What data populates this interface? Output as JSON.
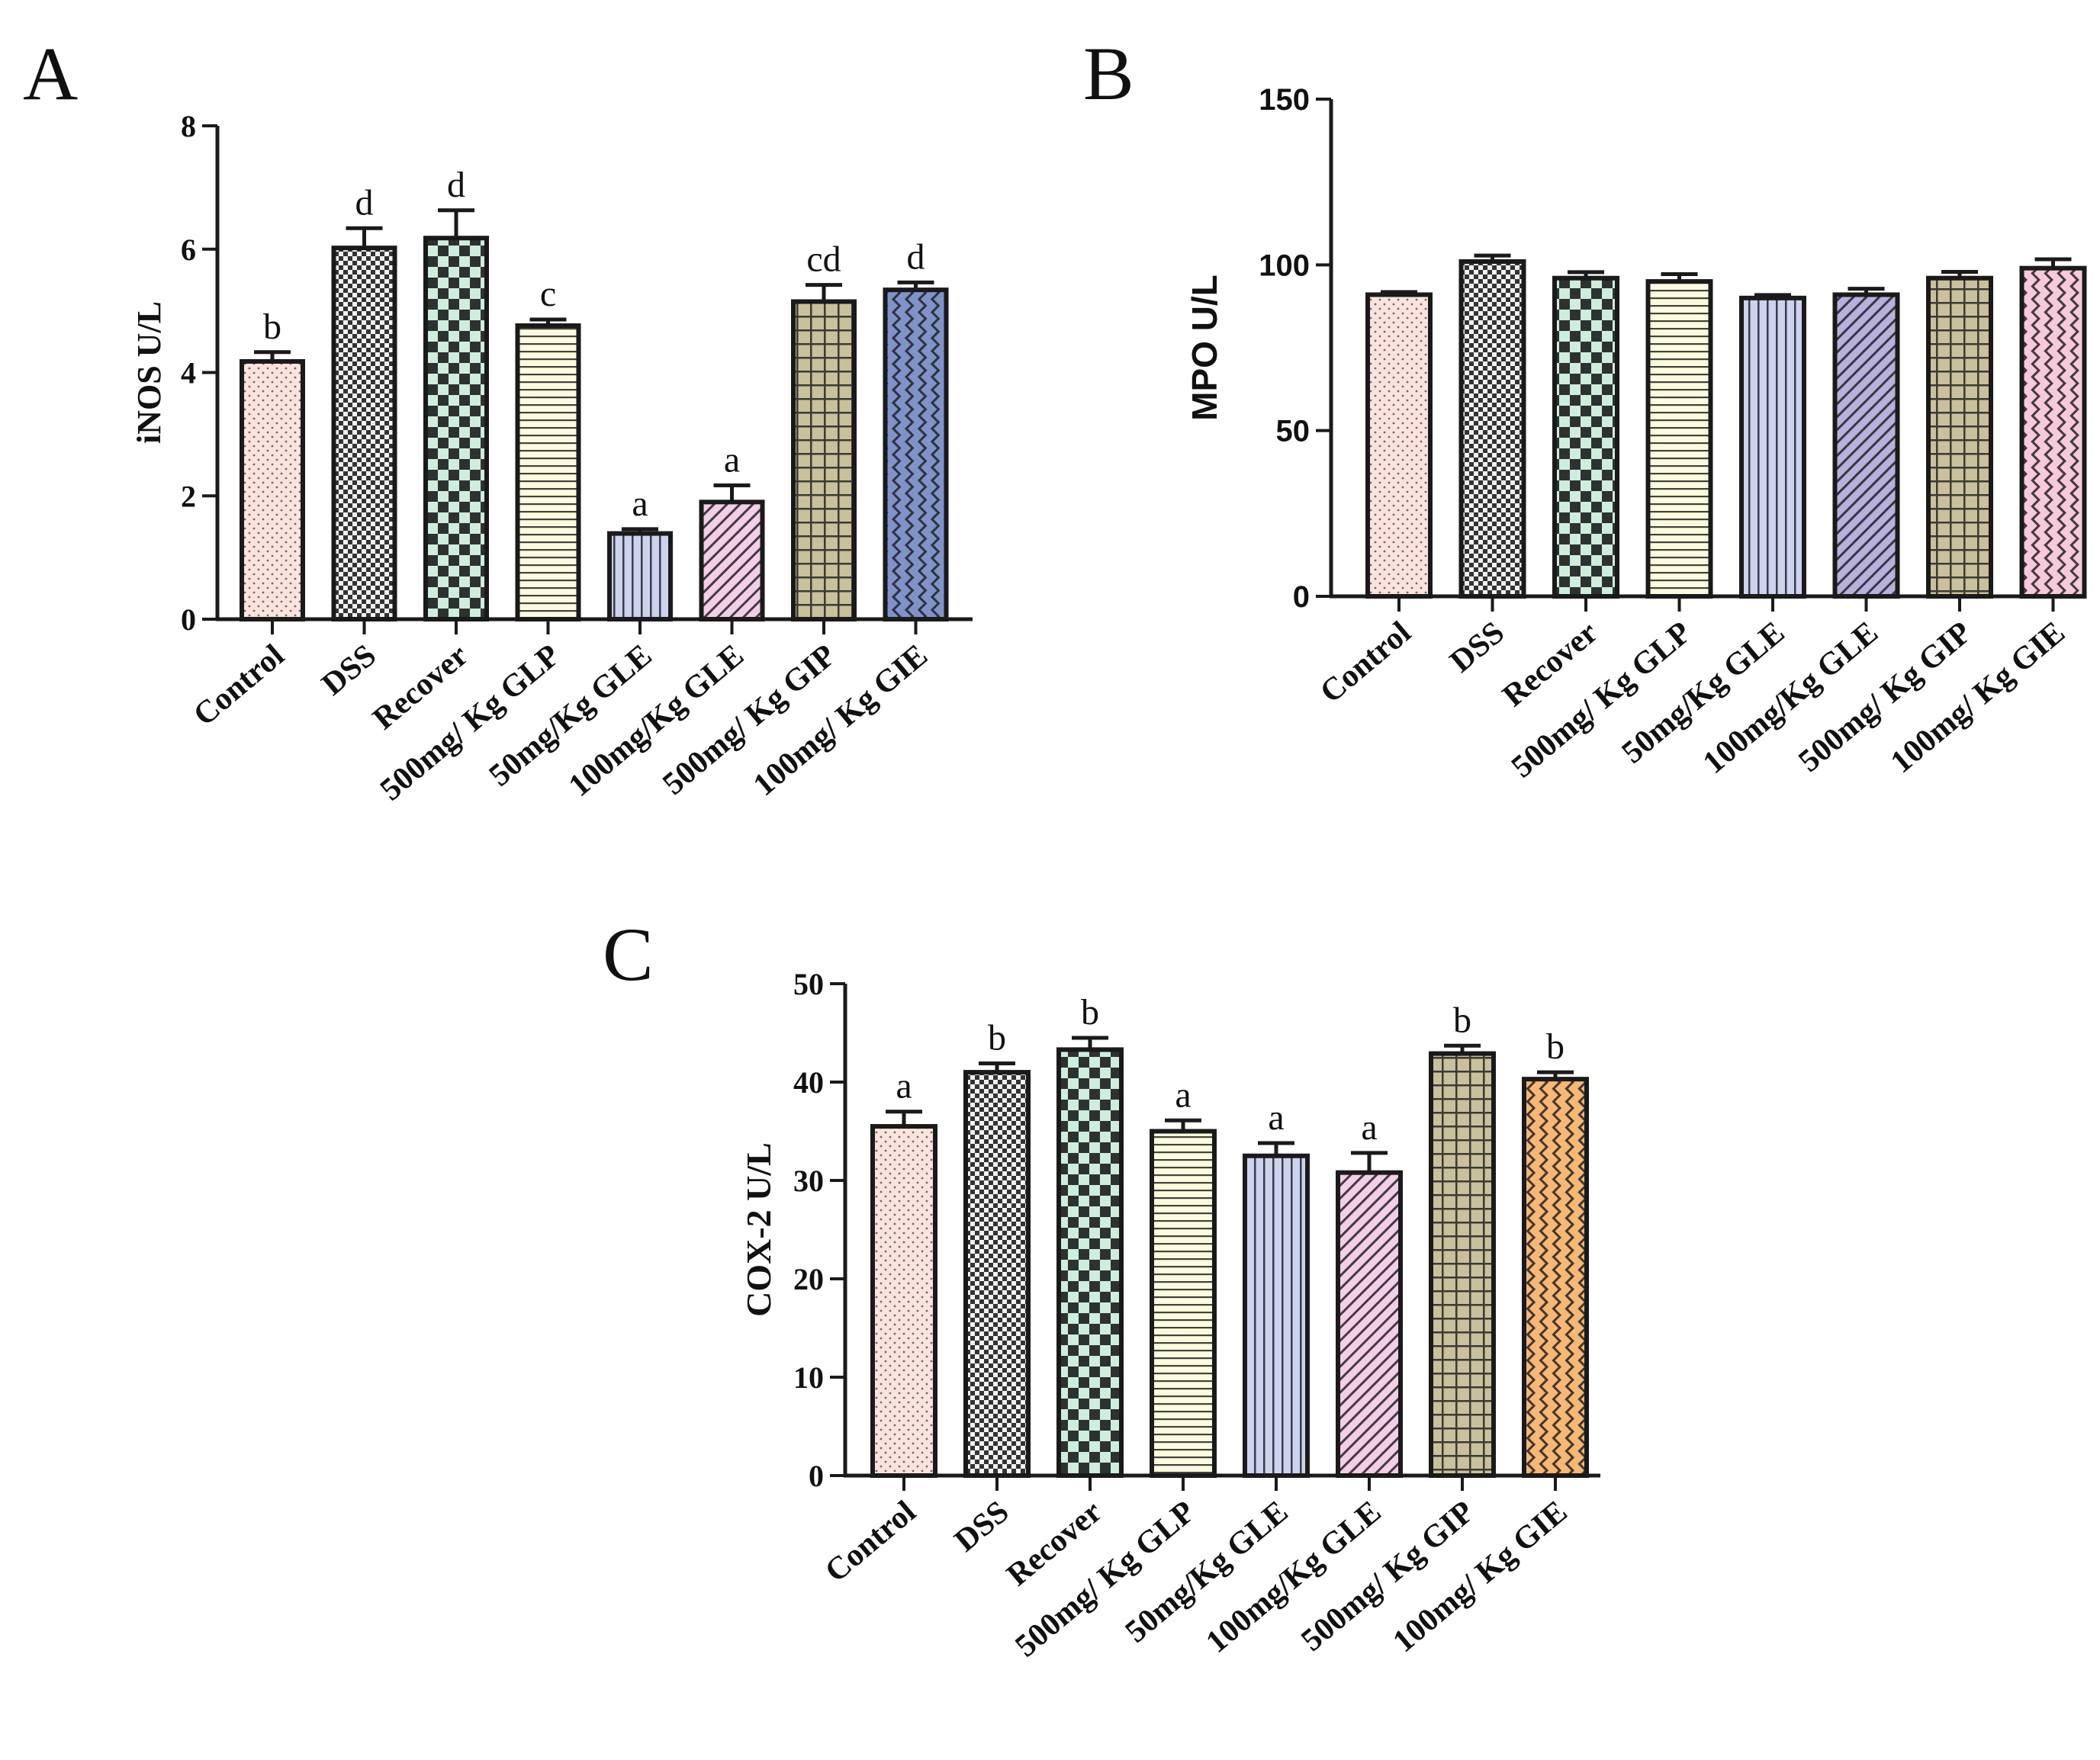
{
  "chart_data": [
    {
      "panel": "A",
      "type": "bar",
      "ylabel": "iNOS U/L",
      "ylim": [
        0,
        8
      ],
      "yticks": [
        0,
        2,
        4,
        6,
        8
      ],
      "categories": [
        "Control",
        "DSS",
        "Recover",
        "500mg/ Kg GLP",
        "50mg/Kg GLE",
        "100mg/Kg GLE",
        "500mg/ Kg GIP",
        "100mg/ Kg GIE"
      ],
      "values": [
        4.18,
        6.02,
        6.18,
        4.76,
        1.39,
        1.9,
        5.15,
        5.34
      ],
      "errors": [
        0.15,
        0.32,
        0.45,
        0.1,
        0.07,
        0.27,
        0.27,
        0.12
      ],
      "labels": [
        "b",
        "d",
        "d",
        "c",
        "a",
        "a",
        "cd",
        "d"
      ],
      "grid": false
    },
    {
      "panel": "B",
      "type": "bar",
      "ylabel": "MPO U/L",
      "ylim": [
        0,
        150
      ],
      "yticks": [
        0,
        50,
        100,
        150
      ],
      "categories": [
        "Control",
        "DSS",
        "Recover",
        "500mg/ Kg GLP",
        "50mg/Kg GLE",
        "100mg/Kg GLE",
        "500mg/ Kg GIP",
        "100mg/ Kg GIE"
      ],
      "values": [
        91,
        101,
        96,
        95,
        90,
        91,
        96,
        99
      ],
      "errors": [
        0.8,
        1.8,
        1.8,
        2.2,
        0.9,
        1.8,
        1.9,
        2.7
      ],
      "labels": [],
      "grid": false
    },
    {
      "panel": "C",
      "type": "bar",
      "ylabel": "COX-2 U/L",
      "ylim": [
        0,
        50
      ],
      "yticks": [
        0,
        10,
        20,
        30,
        40,
        50
      ],
      "categories": [
        "Control",
        "DSS",
        "Recover",
        "500mg/ Kg GLP",
        "50mg/Kg GLE",
        "100mg/Kg GLE",
        "500mg/ Kg GIP",
        "100mg/ Kg GIE"
      ],
      "values": [
        35.5,
        41,
        43.3,
        35,
        32.5,
        30.8,
        42.9,
        40.3
      ],
      "errors": [
        1.5,
        0.9,
        1.2,
        1.1,
        1.3,
        2,
        0.8,
        0.7
      ],
      "labels": [
        "a",
        "b",
        "b",
        "a",
        "a",
        "a",
        "b",
        "b"
      ],
      "grid": false
    }
  ],
  "style": {
    "fills": [
      "#fde3dd",
      "#f2f2f2",
      "#cdeedd",
      "#fcfbe0",
      "#ccd3f0",
      "#f3cfe7",
      "#c9c09c",
      "#7f93cb"
    ],
    "fills_b": [
      "#fde3dd",
      "#f2f2f2",
      "#cdeedd",
      "#fcfbe0",
      "#ccd3f0",
      "#b8b0dd",
      "#c9c09c",
      "#f6c9dc"
    ],
    "fills_c": [
      "#fde3dd",
      "#f2f2f2",
      "#cdeedd",
      "#fcfbe0",
      "#ccd3f0",
      "#f3cfe7",
      "#c9c09c",
      "#f7b875"
    ],
    "stroke": "#1a1a1a"
  }
}
